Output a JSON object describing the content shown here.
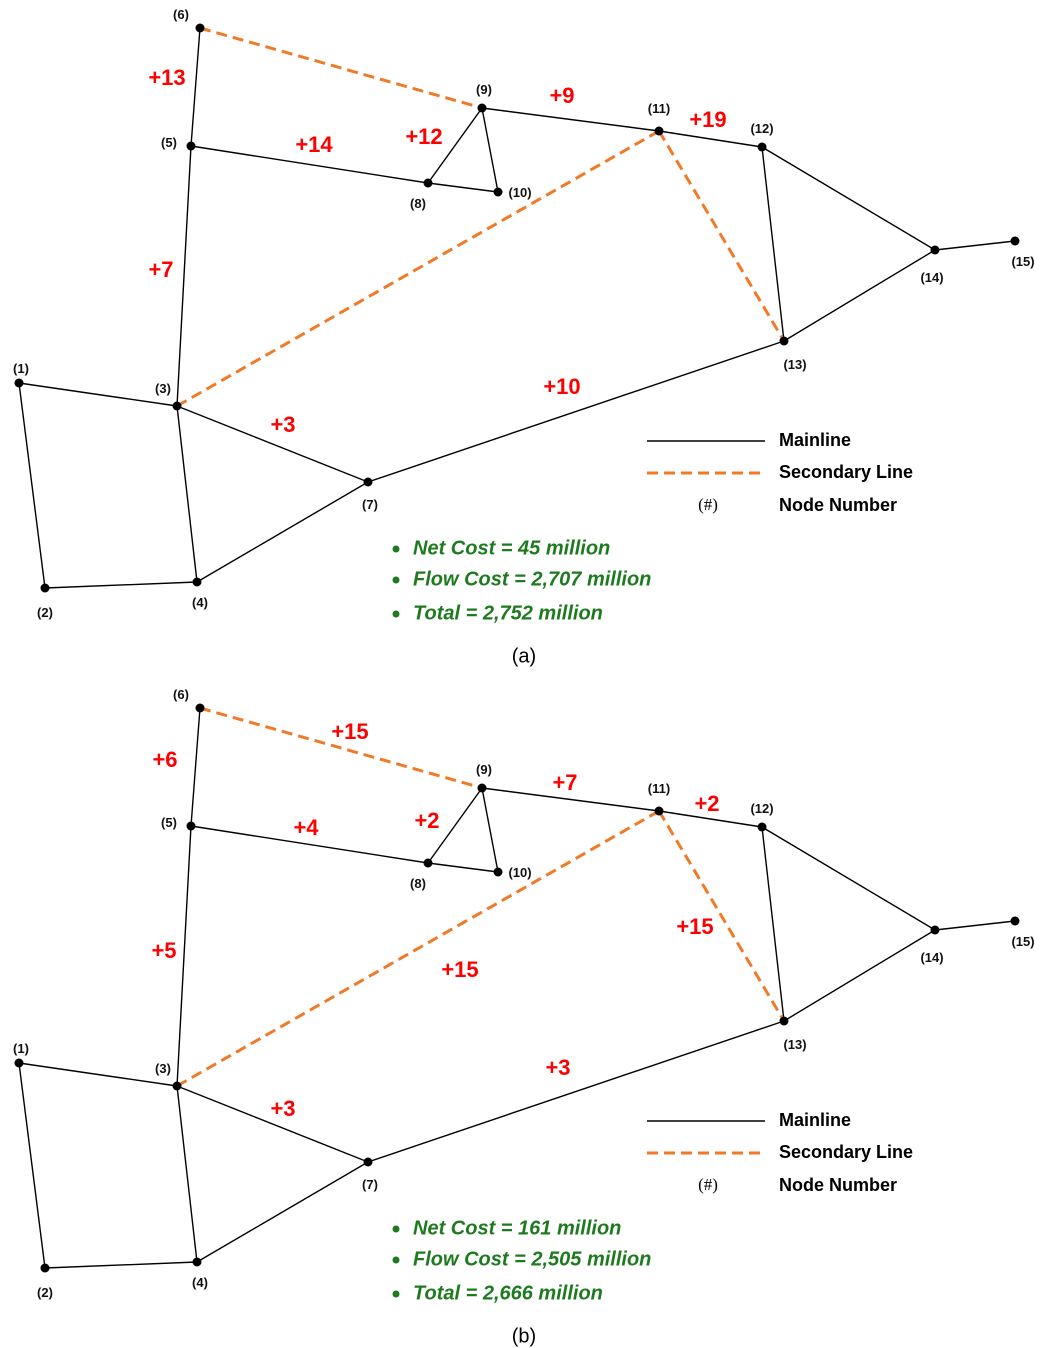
{
  "colors": {
    "mainline": "#000000",
    "secondary": "#f07a28",
    "capacity_label": "#ff0000",
    "summary": "#1e7a1e"
  },
  "legend": {
    "mainline_label": "Mainline",
    "secondary_label": "Secondary Line",
    "node_symbol": "(#)",
    "node_label": "Node Number"
  },
  "nodes": [
    {
      "id": "1",
      "label": "(1)"
    },
    {
      "id": "2",
      "label": "(2)"
    },
    {
      "id": "3",
      "label": "(3)"
    },
    {
      "id": "4",
      "label": "(4)"
    },
    {
      "id": "5",
      "label": "(5)"
    },
    {
      "id": "6",
      "label": "(6)"
    },
    {
      "id": "7",
      "label": "(7)"
    },
    {
      "id": "8",
      "label": "(8)"
    },
    {
      "id": "9",
      "label": "(9)"
    },
    {
      "id": "10",
      "label": "(10)"
    },
    {
      "id": "11",
      "label": "(11)"
    },
    {
      "id": "12",
      "label": "(12)"
    },
    {
      "id": "13",
      "label": "(13)"
    },
    {
      "id": "14",
      "label": "(14)"
    },
    {
      "id": "15",
      "label": "(15)"
    }
  ],
  "mainline_edges": [
    [
      "1",
      "3"
    ],
    [
      "1",
      "2"
    ],
    [
      "2",
      "4"
    ],
    [
      "3",
      "4"
    ],
    [
      "3",
      "5"
    ],
    [
      "3",
      "7"
    ],
    [
      "4",
      "7"
    ],
    [
      "5",
      "6"
    ],
    [
      "5",
      "8"
    ],
    [
      "8",
      "9"
    ],
    [
      "8",
      "10"
    ],
    [
      "9",
      "10"
    ],
    [
      "9",
      "11"
    ],
    [
      "11",
      "12"
    ],
    [
      "12",
      "13"
    ],
    [
      "12",
      "14"
    ],
    [
      "13",
      "14"
    ],
    [
      "14",
      "15"
    ],
    [
      "7",
      "13"
    ]
  ],
  "secondary_edges": [
    [
      "6",
      "9"
    ],
    [
      "3",
      "11"
    ],
    [
      "11",
      "13"
    ]
  ],
  "panels": [
    {
      "caption": "(a)",
      "labels": [
        {
          "edge": "5-6",
          "text": "+13"
        },
        {
          "edge": "5-8",
          "text": "+14"
        },
        {
          "edge": "8-9",
          "text": "+12"
        },
        {
          "edge": "9-11",
          "text": "+9"
        },
        {
          "edge": "11-12",
          "text": "+19"
        },
        {
          "edge": "3-5",
          "text": "+7"
        },
        {
          "edge": "7-13",
          "text": "+10"
        },
        {
          "edge": "3-7",
          "text": "+3"
        }
      ],
      "summary": [
        "Net Cost = 45 million",
        "Flow Cost = 2,707 million",
        "Total = 2,752 million"
      ]
    },
    {
      "caption": "(b)",
      "labels": [
        {
          "edge": "5-6",
          "text": "+6"
        },
        {
          "edge": "6-9",
          "text": "+15"
        },
        {
          "edge": "5-8",
          "text": "+4"
        },
        {
          "edge": "8-9",
          "text": "+2"
        },
        {
          "edge": "9-11",
          "text": "+7"
        },
        {
          "edge": "11-12",
          "text": "+2"
        },
        {
          "edge": "11-13",
          "text": "+15"
        },
        {
          "edge": "3-11",
          "text": "+15"
        },
        {
          "edge": "3-5",
          "text": "+5"
        },
        {
          "edge": "7-13",
          "text": "+3"
        },
        {
          "edge": "3-7",
          "text": "+3"
        }
      ],
      "summary": [
        "Net Cost = 161 million",
        "Flow Cost = 2,505 million",
        "Total = 2,666 million"
      ]
    }
  ]
}
